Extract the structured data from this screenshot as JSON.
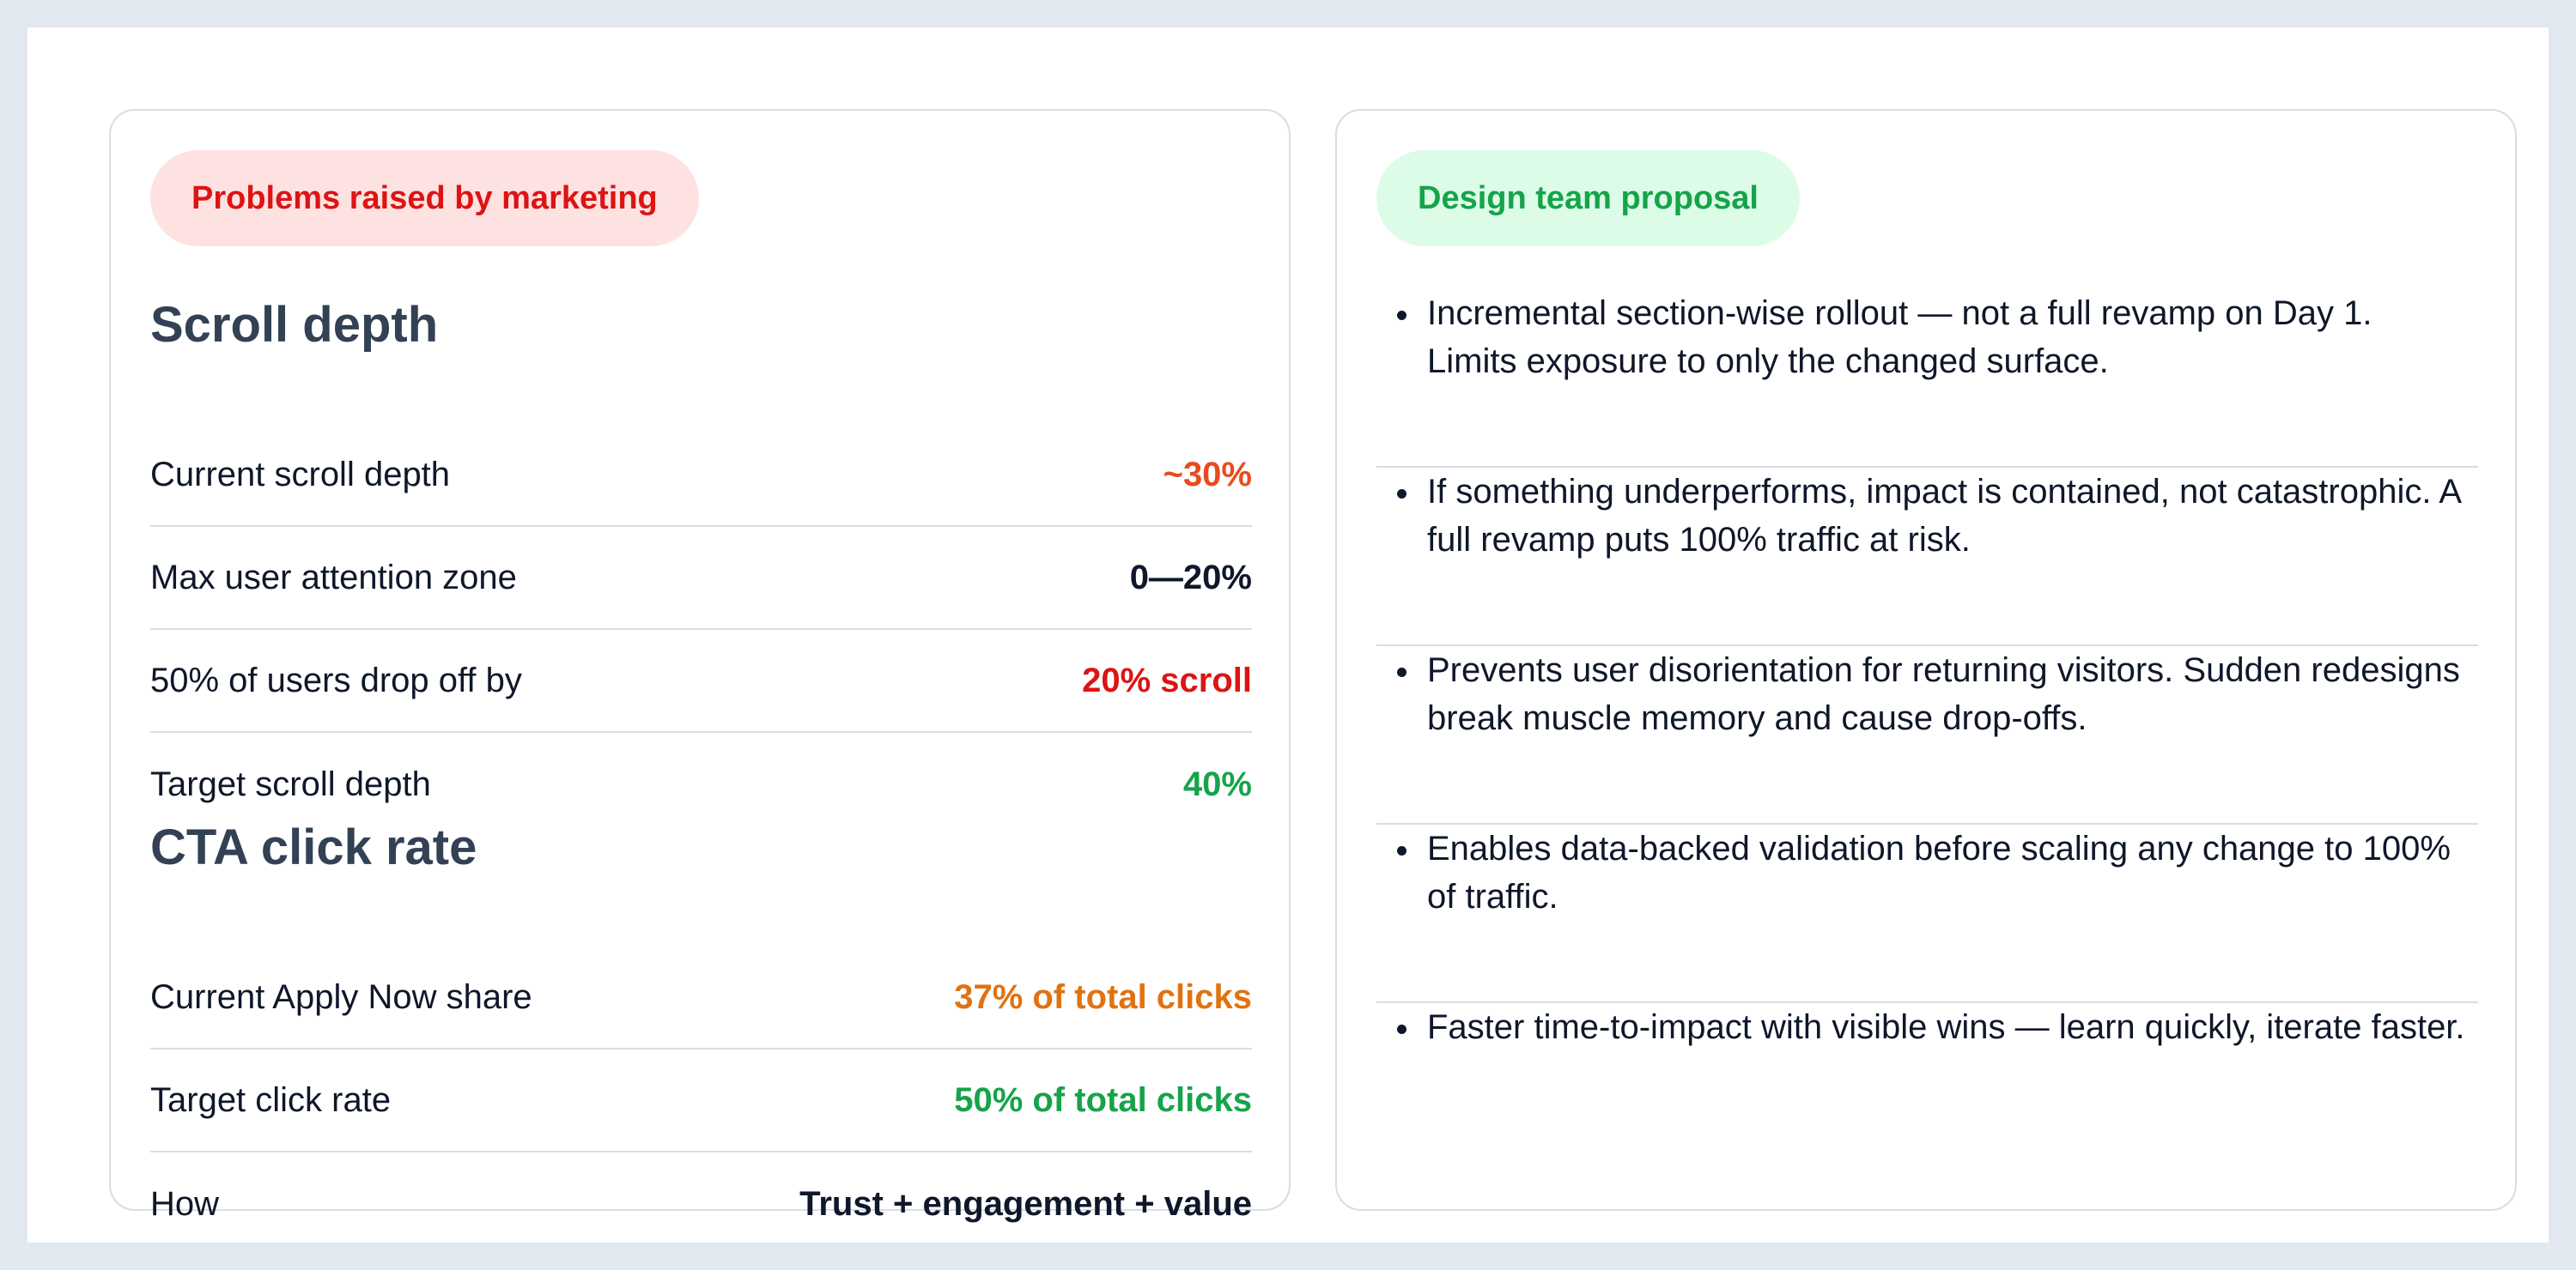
{
  "colors": {
    "page_background": "#e2e8f0",
    "card_border": "#d5dde6",
    "problem_pill_bg": "#fee2e2",
    "problem_pill_text": "#dc1414",
    "proposal_pill_bg": "#dcfce7",
    "proposal_pill_text": "#16a34a",
    "section_title": "#334155",
    "text_primary": "#0f172a"
  },
  "left_card": {
    "badge": "Problems raised by marketing",
    "sections": [
      {
        "title": "Scroll depth",
        "rows": [
          {
            "label": "Current scroll depth",
            "value": "~30%",
            "value_color": "#ea4a1f"
          },
          {
            "label": "Max user attention zone",
            "value": "0—20%",
            "value_color": "#0f172a"
          },
          {
            "label": "50% of users drop off by",
            "value": "20% scroll",
            "value_color": "#dc1414"
          },
          {
            "label": "Target scroll depth",
            "value": "40%",
            "value_color": "#16a34a"
          }
        ]
      },
      {
        "title": "CTA click rate",
        "rows": [
          {
            "label": "Current Apply Now share",
            "value": "37% of total clicks",
            "value_color": "#e07311"
          },
          {
            "label": "Target click rate",
            "value": "50% of total clicks",
            "value_color": "#16a34a"
          },
          {
            "label": "How",
            "value": "Trust + engagement + value",
            "value_color": "#0f172a"
          }
        ]
      }
    ]
  },
  "right_card": {
    "badge": "Design team proposal",
    "items": [
      {
        "text": "Incremental section-wise rollout — not a full revamp on Day 1. Limits exposure to only the changed surface."
      },
      {
        "text": "If something underperforms, impact is contained, not catastrophic. A full revamp puts 100% traffic at risk."
      },
      {
        "text": "Prevents user disorientation for returning visitors. Sudden redesigns break muscle memory and cause drop-offs."
      },
      {
        "text": "Enables data-backed validation before scaling any change to 100% of traffic."
      },
      {
        "text": "Faster time-to-impact with visible wins — learn quickly, iterate faster."
      }
    ]
  }
}
